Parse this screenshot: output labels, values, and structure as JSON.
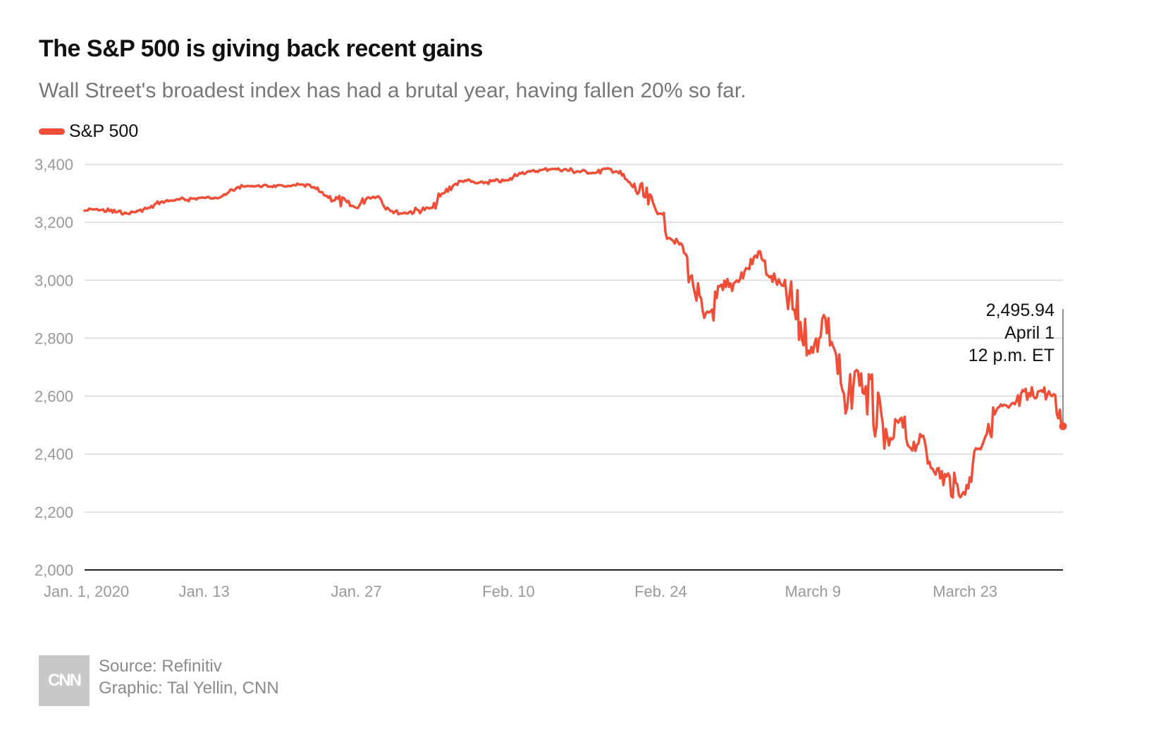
{
  "header": {
    "title": "The S&P 500 is giving back recent gains",
    "subtitle": "Wall Street's broadest index has had a brutal year, having fallen 20% so far."
  },
  "legend": {
    "label": "S&P 500"
  },
  "colors": {
    "series": "#f04e37",
    "grid": "#d8d8d8",
    "axis": "#222222",
    "tick_text": "#999999",
    "text": "#111111"
  },
  "footer": {
    "logo": "CNN",
    "source": "Source: Refinitiv",
    "credit": "Graphic: Tal Yellin, CNN"
  },
  "chart_data": {
    "type": "line",
    "title": "The S&P 500 is giving back recent gains",
    "subtitle": "Wall Street's broadest index has had a brutal year, having fallen 20% so far.",
    "xlabel": "",
    "ylabel": "",
    "ylim": [
      2000,
      3400
    ],
    "yticks": [
      2000,
      2200,
      2400,
      2600,
      2800,
      3000,
      3200,
      3400
    ],
    "ytick_labels": [
      "2,000",
      "2,200",
      "2,400",
      "2,600",
      "2,800",
      "3,000",
      "3,200",
      "3,400"
    ],
    "xlim": [
      "2020-01-02",
      "2020-04-01"
    ],
    "xticks": [
      "2020-01-01",
      "2020-01-13",
      "2020-01-27",
      "2020-02-10",
      "2020-02-24",
      "2020-03-09",
      "2020-03-23"
    ],
    "xtick_labels": [
      "Jan. 1, 2020",
      "Jan. 13",
      "Jan. 27",
      "Feb. 10",
      "Feb. 24",
      "March 9",
      "March 23"
    ],
    "grid": true,
    "legend": "top-left",
    "series": [
      {
        "name": "S&P 500",
        "x": [
          "2020-01-02",
          "2020-01-03",
          "2020-01-06",
          "2020-01-07",
          "2020-01-08",
          "2020-01-09",
          "2020-01-10",
          "2020-01-13",
          "2020-01-14",
          "2020-01-15",
          "2020-01-16",
          "2020-01-17",
          "2020-01-21",
          "2020-01-22",
          "2020-01-23",
          "2020-01-24",
          "2020-01-27",
          "2020-01-28",
          "2020-01-29",
          "2020-01-30",
          "2020-01-31",
          "2020-02-03",
          "2020-02-04",
          "2020-02-05",
          "2020-02-06",
          "2020-02-07",
          "2020-02-10",
          "2020-02-11",
          "2020-02-12",
          "2020-02-13",
          "2020-02-14",
          "2020-02-18",
          "2020-02-19",
          "2020-02-20",
          "2020-02-21",
          "2020-02-24",
          "2020-02-25",
          "2020-02-26",
          "2020-02-27",
          "2020-02-28",
          "2020-03-02",
          "2020-03-03",
          "2020-03-04",
          "2020-03-05",
          "2020-03-06",
          "2020-03-09",
          "2020-03-10",
          "2020-03-11",
          "2020-03-12",
          "2020-03-13",
          "2020-03-16",
          "2020-03-17",
          "2020-03-18",
          "2020-03-19",
          "2020-03-20",
          "2020-03-23",
          "2020-03-24",
          "2020-03-25",
          "2020-03-26",
          "2020-03-27",
          "2020-03-30",
          "2020-03-31",
          "2020-04-01"
        ],
        "values": [
          3240,
          3245,
          3230,
          3240,
          3250,
          3270,
          3275,
          3285,
          3285,
          3295,
          3320,
          3325,
          3325,
          3330,
          3320,
          3295,
          3250,
          3285,
          3290,
          3245,
          3230,
          3250,
          3300,
          3330,
          3345,
          3335,
          3345,
          3370,
          3375,
          3380,
          3385,
          3370,
          3385,
          3375,
          3340,
          3230,
          3140,
          3120,
          2980,
          2870,
          3000,
          3040,
          3100,
          3010,
          2990,
          2750,
          2880,
          2760,
          2540,
          2690,
          2430,
          2520,
          2420,
          2460,
          2350,
          2260,
          2420,
          2470,
          2560,
          2560,
          2620,
          2600,
          2495.94
        ]
      }
    ],
    "annotation": {
      "value": "2,495.94",
      "date": "April 1",
      "time": "12 p.m. ET"
    }
  }
}
